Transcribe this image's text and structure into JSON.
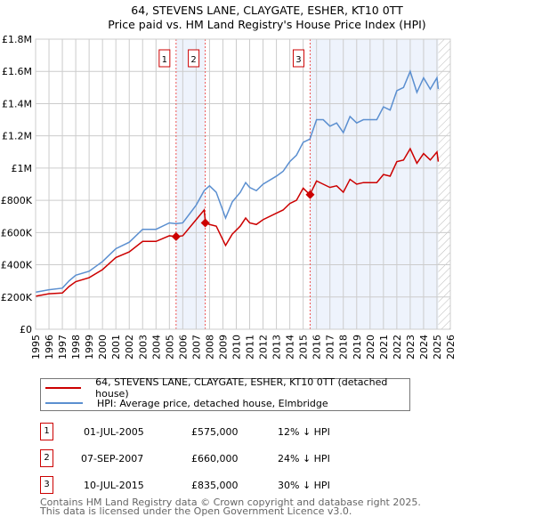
{
  "chart_data": {
    "type": "line",
    "title": "64, STEVENS LANE, CLAYGATE, ESHER, KT10 0TT",
    "subtitle": "Price paid vs. HM Land Registry's House Price Index (HPI)",
    "xlim": [
      1995,
      2026
    ],
    "ylim": [
      0,
      1800000
    ],
    "x_ticks": [
      "1995",
      "1996",
      "1997",
      "1998",
      "1999",
      "2000",
      "2001",
      "2002",
      "2003",
      "2004",
      "2005",
      "2006",
      "2007",
      "2008",
      "2009",
      "2010",
      "2011",
      "2012",
      "2013",
      "2014",
      "2015",
      "2016",
      "2017",
      "2018",
      "2019",
      "2020",
      "2021",
      "2022",
      "2023",
      "2024",
      "2025",
      "2026"
    ],
    "y_ticks": [
      {
        "v": 0,
        "label": "£0"
      },
      {
        "v": 200000,
        "label": "£200K"
      },
      {
        "v": 400000,
        "label": "£400K"
      },
      {
        "v": 600000,
        "label": "£600K"
      },
      {
        "v": 800000,
        "label": "£800K"
      },
      {
        "v": 1000000,
        "label": "£1M"
      },
      {
        "v": 1200000,
        "label": "£1.2M"
      },
      {
        "v": 1400000,
        "label": "£1.4M"
      },
      {
        "v": 1600000,
        "label": "£1.6M"
      },
      {
        "v": 1800000,
        "label": "£1.8M"
      }
    ],
    "grid": true,
    "series": [
      {
        "name": "64, STEVENS LANE, CLAYGATE, ESHER, KT10 0TT (detached house)",
        "color": "#cc0000",
        "x": [
          1995,
          1996,
          1997,
          1997.5,
          1998,
          1999,
          2000,
          2001,
          2002,
          2003,
          2004,
          2005,
          2005.5,
          2006,
          2007,
          2007.6,
          2007.7,
          2008,
          2008.5,
          2009.2,
          2009.7,
          2010.3,
          2010.7,
          2011,
          2011.5,
          2012,
          2013,
          2013.5,
          2014,
          2014.5,
          2015,
          2015.5,
          2016,
          2016.5,
          2017,
          2017.5,
          2018,
          2018.5,
          2019,
          2019.5,
          2020,
          2020.5,
          2021,
          2021.5,
          2022,
          2022.5,
          2023,
          2023.5,
          2024,
          2024.5,
          2025,
          2025.1
        ],
        "y": [
          205000,
          220000,
          225000,
          265000,
          295000,
          320000,
          370000,
          445000,
          480000,
          545000,
          545000,
          580000,
          575000,
          580000,
          680000,
          740000,
          660000,
          650000,
          640000,
          520000,
          590000,
          640000,
          690000,
          660000,
          650000,
          680000,
          720000,
          740000,
          780000,
          800000,
          875000,
          835000,
          920000,
          900000,
          880000,
          890000,
          850000,
          930000,
          900000,
          910000,
          910000,
          910000,
          960000,
          950000,
          1040000,
          1050000,
          1120000,
          1030000,
          1090000,
          1050000,
          1100000,
          1040000
        ]
      },
      {
        "name": "HPI: Average price, detached house, Elmbridge",
        "color": "#5b8fd0",
        "x": [
          1995,
          1996,
          1997,
          1997.5,
          1998,
          1999,
          2000,
          2001,
          2002,
          2003,
          2004,
          2005,
          2005.5,
          2006,
          2007,
          2007.6,
          2008,
          2008.5,
          2009.2,
          2009.7,
          2010.3,
          2010.7,
          2011,
          2011.5,
          2012,
          2013,
          2013.5,
          2014,
          2014.5,
          2015,
          2015.5,
          2016,
          2016.5,
          2017,
          2017.5,
          2018,
          2018.5,
          2019,
          2019.5,
          2020,
          2020.5,
          2021,
          2021.5,
          2022,
          2022.5,
          2023,
          2023.5,
          2024,
          2024.5,
          2025,
          2025.1
        ],
        "y": [
          230000,
          245000,
          255000,
          300000,
          335000,
          360000,
          420000,
          500000,
          540000,
          620000,
          620000,
          660000,
          655000,
          660000,
          770000,
          860000,
          890000,
          850000,
          690000,
          790000,
          850000,
          910000,
          880000,
          860000,
          900000,
          950000,
          980000,
          1040000,
          1080000,
          1160000,
          1180000,
          1300000,
          1300000,
          1260000,
          1280000,
          1220000,
          1320000,
          1280000,
          1300000,
          1300000,
          1300000,
          1380000,
          1360000,
          1480000,
          1500000,
          1600000,
          1470000,
          1560000,
          1490000,
          1560000,
          1490000
        ]
      }
    ],
    "sales": [
      {
        "num": "1",
        "x": 2005.5,
        "date": "01-JUL-2005",
        "price": 575000,
        "price_label": "£575,000",
        "hpi": "12% ↓ HPI"
      },
      {
        "num": "2",
        "x": 2007.68,
        "date": "07-SEP-2007",
        "price": 660000,
        "price_label": "£660,000",
        "hpi": "24% ↓ HPI"
      },
      {
        "num": "3",
        "x": 2015.52,
        "date": "10-JUL-2015",
        "price": 835000,
        "price_label": "£835,000",
        "hpi": "30% ↓ HPI"
      }
    ],
    "shaded_ranges": [
      [
        2005.5,
        2007.68
      ],
      [
        2015.52,
        2025.1
      ]
    ],
    "forecast_hatch_from": 2025.1
  },
  "footer": [
    "Contains HM Land Registry data © Crown copyright and database right 2025.",
    "This data is licensed under the Open Government Licence v3.0."
  ]
}
